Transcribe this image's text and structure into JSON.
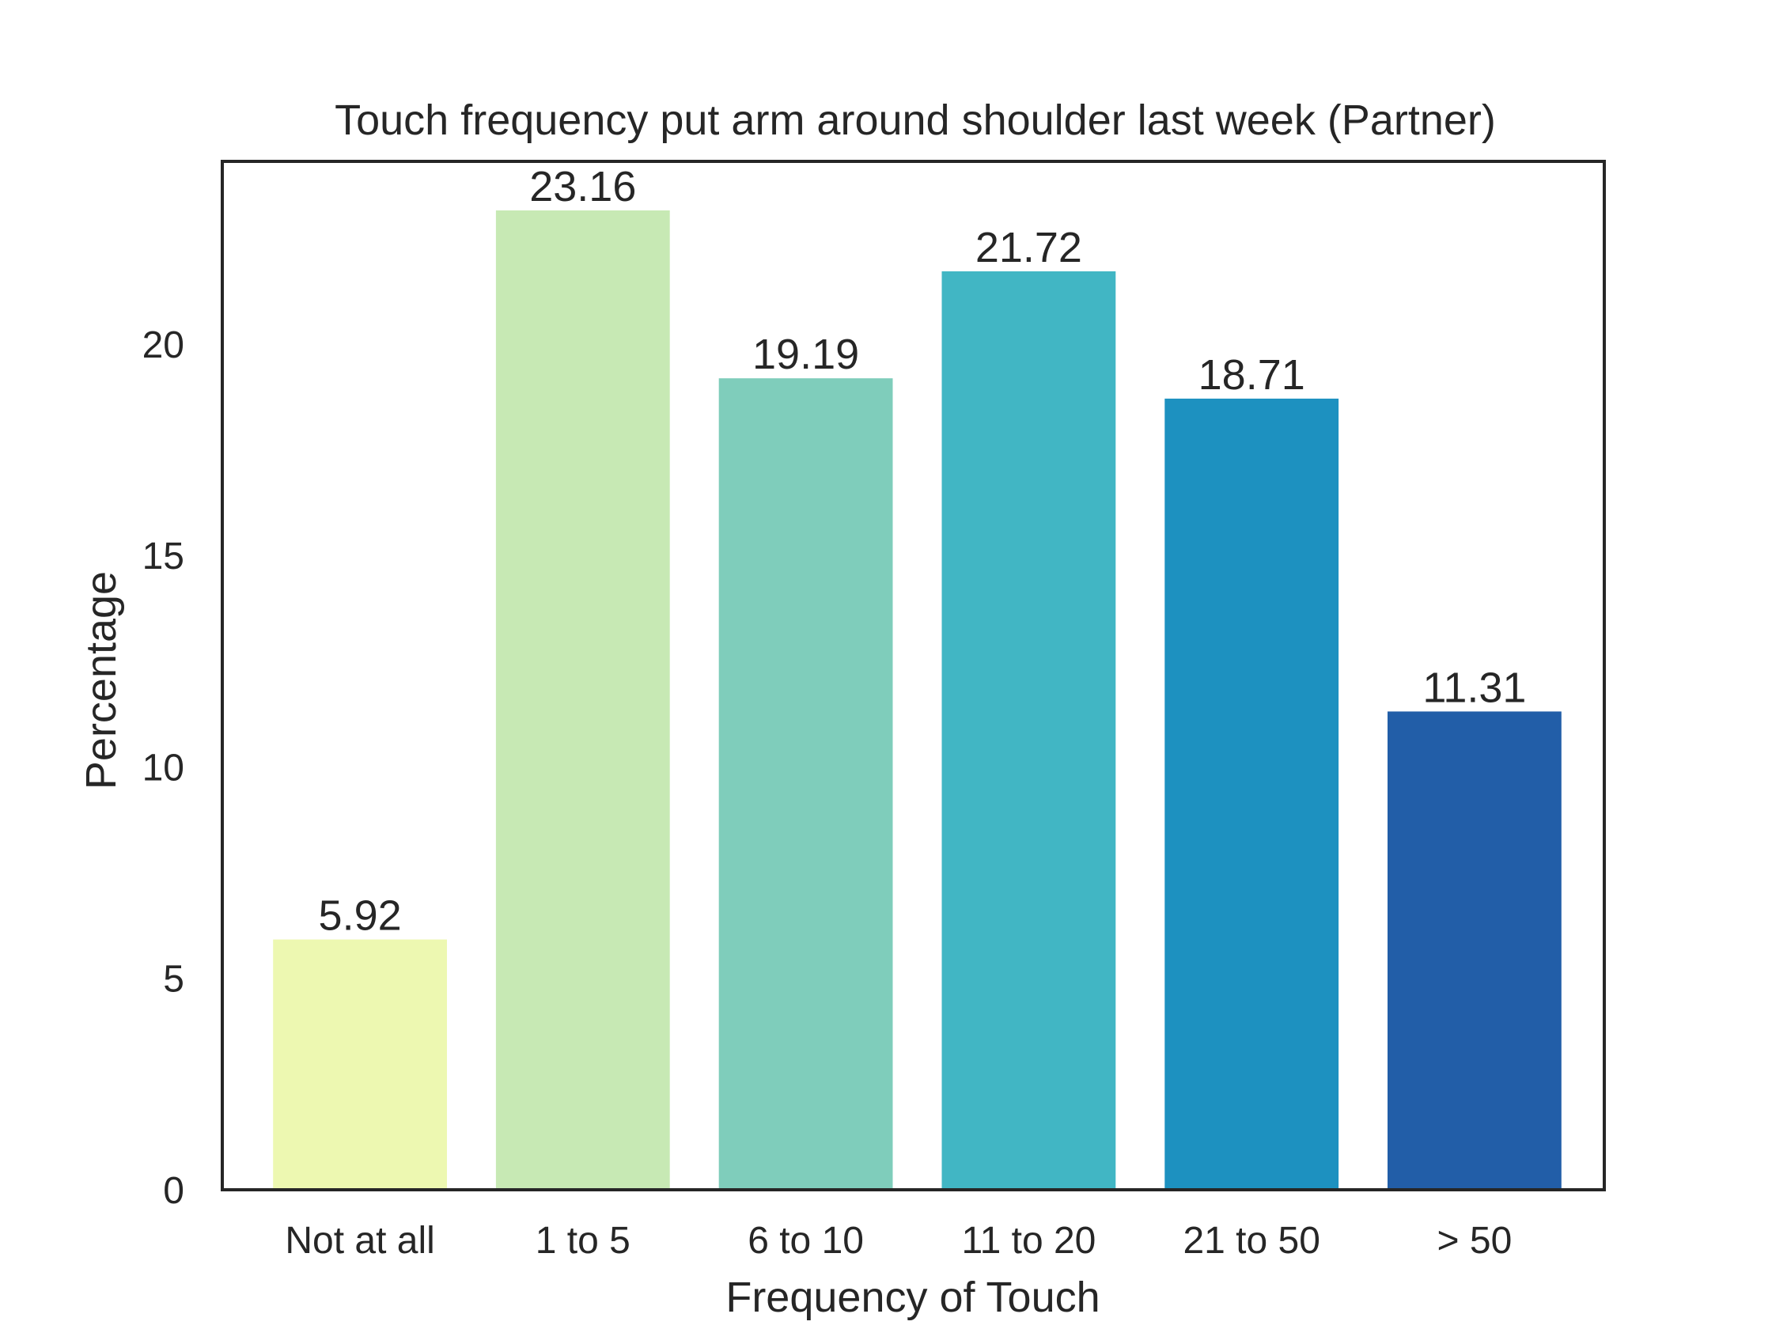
{
  "chart_data": {
    "type": "bar",
    "title": "Touch frequency put arm around shoulder last week (Partner)",
    "xlabel": "Frequency of Touch",
    "ylabel": "Percentage",
    "categories": [
      "Not at all",
      "1 to 5",
      "6 to 10",
      "11 to 20",
      "21 to 50",
      "> 50"
    ],
    "values": [
      5.92,
      23.16,
      19.19,
      21.72,
      18.71,
      11.31
    ],
    "value_labels": [
      "5.92",
      "23.16",
      "19.19",
      "21.72",
      "18.71",
      "11.31"
    ],
    "colors": [
      "#edf8b1",
      "#c7e9b4",
      "#7fcdbb",
      "#41b6c4",
      "#1d91c0",
      "#225ea8"
    ],
    "ylim": [
      0,
      24.32
    ],
    "yticks": [
      0,
      5,
      10,
      15,
      20
    ],
    "ytick_labels": [
      "0",
      "5",
      "10",
      "15",
      "20"
    ],
    "grid": false,
    "legend": "none"
  }
}
